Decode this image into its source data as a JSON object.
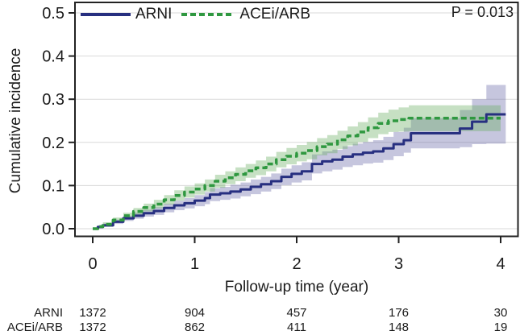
{
  "annotations": {
    "p_value": "P = 0.013"
  },
  "risk_table": {
    "rows": [
      {
        "label": "ARNI",
        "counts": [
          "1372",
          "904",
          "457",
          "176",
          "30"
        ]
      },
      {
        "label": "ACEi/ARB",
        "counts": [
          "1372",
          "862",
          "411",
          "148",
          "19"
        ]
      }
    ]
  },
  "chart_data": {
    "type": "line",
    "subtype": "step-cumulative-incidence",
    "title": "",
    "xlabel": "Follow-up time (year)",
    "ylabel": "Cumulative incidence",
    "xlim": [
      -0.17,
      4.17
    ],
    "ylim": [
      -0.017,
      0.522
    ],
    "x_tick_values": [
      0,
      1,
      2,
      3,
      4
    ],
    "x_tick_labels": [
      "0",
      "1",
      "2",
      "3",
      "4"
    ],
    "y_tick_values": [
      0.0,
      0.1,
      0.2,
      0.3,
      0.4,
      0.5
    ],
    "y_tick_labels": [
      "0.0",
      "0.1",
      "0.2",
      "0.3",
      "0.4",
      "0.5"
    ],
    "grid": "horizontal",
    "legend_position": "top-left-inside",
    "annotation": "P = 0.013",
    "series": [
      {
        "name": "ARNI",
        "style": "solid",
        "color": "#272f80",
        "band_color": "rgba(106,106,168,0.38)",
        "x": [
          0,
          0.05,
          0.1,
          0.2,
          0.3,
          0.4,
          0.5,
          0.6,
          0.7,
          0.8,
          0.9,
          1.0,
          1.1,
          1.15,
          1.25,
          1.35,
          1.45,
          1.55,
          1.65,
          1.75,
          1.85,
          1.95,
          2.05,
          2.15,
          2.25,
          2.35,
          2.45,
          2.55,
          2.65,
          2.75,
          2.85,
          2.95,
          3.05,
          3.12,
          3.6,
          3.72,
          3.86,
          4.05
        ],
        "y": [
          0,
          0.004,
          0.008,
          0.016,
          0.024,
          0.03,
          0.036,
          0.041,
          0.048,
          0.054,
          0.059,
          0.065,
          0.071,
          0.079,
          0.082,
          0.086,
          0.091,
          0.097,
          0.103,
          0.11,
          0.12,
          0.127,
          0.133,
          0.15,
          0.156,
          0.16,
          0.167,
          0.172,
          0.176,
          0.179,
          0.186,
          0.196,
          0.205,
          0.221,
          0.232,
          0.248,
          0.265,
          0.265
        ],
        "ci": [
          0.002,
          0.003,
          0.004,
          0.005,
          0.006,
          0.007,
          0.008,
          0.009,
          0.01,
          0.011,
          0.012,
          0.013,
          0.014,
          0.015,
          0.015,
          0.016,
          0.016,
          0.017,
          0.017,
          0.018,
          0.019,
          0.02,
          0.021,
          0.022,
          0.023,
          0.023,
          0.024,
          0.025,
          0.025,
          0.026,
          0.027,
          0.028,
          0.029,
          0.035,
          0.043,
          0.052,
          0.068,
          0.068
        ]
      },
      {
        "name": "ACEi/ARB",
        "style": "dashed",
        "color": "#2f9840",
        "band_color": "rgba(104,174,98,0.38)",
        "x": [
          0,
          0.05,
          0.1,
          0.2,
          0.3,
          0.4,
          0.5,
          0.6,
          0.7,
          0.8,
          0.9,
          1.0,
          1.1,
          1.2,
          1.3,
          1.4,
          1.5,
          1.6,
          1.7,
          1.8,
          1.9,
          2.0,
          2.1,
          2.2,
          2.3,
          2.4,
          2.5,
          2.6,
          2.7,
          2.8,
          2.9,
          3.0,
          3.1,
          4.0
        ],
        "y": [
          0,
          0.005,
          0.01,
          0.02,
          0.03,
          0.04,
          0.049,
          0.057,
          0.067,
          0.077,
          0.085,
          0.092,
          0.1,
          0.11,
          0.118,
          0.126,
          0.134,
          0.141,
          0.15,
          0.16,
          0.168,
          0.175,
          0.181,
          0.19,
          0.196,
          0.206,
          0.215,
          0.224,
          0.234,
          0.244,
          0.25,
          0.253,
          0.256,
          0.256
        ],
        "ci": [
          0.002,
          0.003,
          0.005,
          0.006,
          0.007,
          0.008,
          0.009,
          0.01,
          0.011,
          0.012,
          0.013,
          0.013,
          0.014,
          0.015,
          0.015,
          0.016,
          0.016,
          0.017,
          0.017,
          0.018,
          0.019,
          0.019,
          0.02,
          0.02,
          0.021,
          0.021,
          0.022,
          0.023,
          0.024,
          0.025,
          0.026,
          0.028,
          0.03,
          0.042
        ]
      }
    ]
  }
}
